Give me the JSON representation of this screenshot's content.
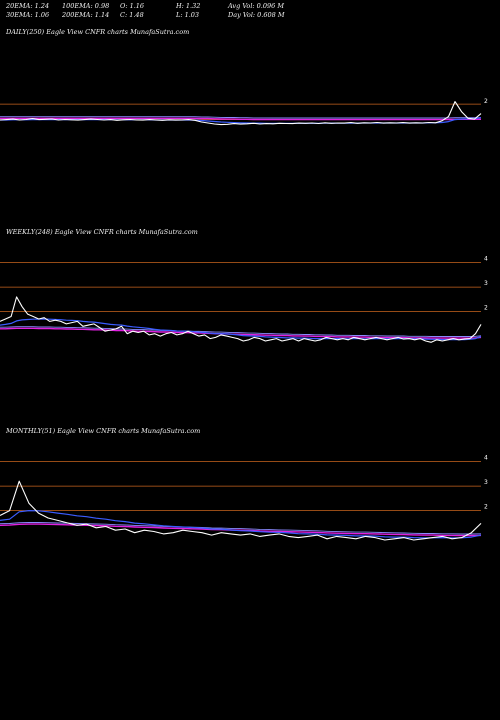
{
  "header": {
    "row1": [
      "20EMA: 1.24",
      "100EMA: 0.98",
      "O: 1.16",
      "H: 1.32",
      "Avg Vol: 0.096  M"
    ],
    "row2": [
      "30EMA: 1.06",
      "200EMA: 1.14",
      "C: 1.48",
      "L: 1.03",
      "Day Vol: 0.608 M"
    ]
  },
  "colors": {
    "background": "#000000",
    "price": "#ffffff",
    "ema_short": "#3a5cff",
    "ema_long": "#e020e0",
    "ema_mid": "#8a8aff",
    "level_line": "#c8641e"
  },
  "chart_data": [
    {
      "type": "line",
      "title": "DAILY(250) Eagle   View  CNFR charts MunafaSutra.com",
      "y_ticks": [
        {
          "label": "2",
          "value": 2
        }
      ],
      "level_lines": [
        2.05,
        1.12
      ],
      "ylim": [
        -5,
        6
      ],
      "series": [
        {
          "role": "price",
          "values": [
            1.1,
            1.12,
            1.15,
            1.1,
            1.13,
            1.18,
            1.12,
            1.14,
            1.16,
            1.1,
            1.13,
            1.11,
            1.09,
            1.12,
            1.15,
            1.13,
            1.1,
            1.12,
            1.08,
            1.11,
            1.13,
            1.1,
            1.09,
            1.12,
            1.1,
            1.08,
            1.11,
            1.09,
            1.1,
            1.12,
            1.08,
            0.98,
            0.92,
            0.86,
            0.82,
            0.84,
            0.88,
            0.85,
            0.87,
            0.9,
            0.86,
            0.88,
            0.87,
            0.9,
            0.89,
            0.88,
            0.91,
            0.9,
            0.92,
            0.89,
            0.93,
            0.9,
            0.92,
            0.91,
            0.94,
            0.9,
            0.93,
            0.92,
            0.95,
            0.91,
            0.93,
            0.92,
            0.94,
            0.91,
            0.93,
            0.92,
            0.95,
            0.93,
            1.05,
            1.3,
            2.2,
            1.6,
            1.2,
            1.15,
            1.48
          ]
        },
        {
          "role": "ema_long",
          "values": [
            1.2,
            1.2,
            1.2,
            1.2,
            1.2,
            1.2,
            1.2,
            1.2,
            1.2,
            1.2,
            1.2,
            1.2,
            1.2,
            1.2,
            1.2,
            1.2,
            1.2,
            1.2,
            1.2,
            1.2,
            1.2,
            1.2,
            1.2,
            1.2,
            1.2,
            1.2,
            1.2,
            1.2,
            1.2,
            1.2,
            1.2,
            1.19,
            1.18,
            1.17,
            1.16,
            1.15,
            1.15,
            1.14,
            1.14,
            1.13,
            1.13,
            1.13,
            1.12,
            1.12,
            1.12,
            1.12,
            1.12,
            1.12,
            1.12,
            1.12,
            1.12,
            1.12,
            1.12,
            1.12,
            1.12,
            1.12,
            1.12,
            1.12,
            1.12,
            1.12,
            1.12,
            1.12,
            1.12,
            1.12,
            1.12,
            1.12,
            1.12,
            1.12,
            1.12,
            1.13,
            1.14,
            1.14,
            1.14,
            1.14,
            1.14
          ]
        },
        {
          "role": "ema_short",
          "values": [
            1.1,
            1.1,
            1.11,
            1.11,
            1.11,
            1.12,
            1.12,
            1.12,
            1.12,
            1.12,
            1.12,
            1.12,
            1.12,
            1.12,
            1.12,
            1.12,
            1.12,
            1.12,
            1.11,
            1.11,
            1.11,
            1.11,
            1.11,
            1.11,
            1.1,
            1.1,
            1.1,
            1.1,
            1.1,
            1.1,
            1.09,
            1.07,
            1.04,
            1.01,
            0.98,
            0.96,
            0.94,
            0.93,
            0.92,
            0.91,
            0.91,
            0.9,
            0.9,
            0.9,
            0.9,
            0.9,
            0.9,
            0.9,
            0.9,
            0.9,
            0.91,
            0.91,
            0.91,
            0.91,
            0.91,
            0.91,
            0.92,
            0.92,
            0.92,
            0.92,
            0.92,
            0.92,
            0.92,
            0.92,
            0.92,
            0.92,
            0.93,
            0.93,
            0.95,
            1.0,
            1.12,
            1.16,
            1.17,
            1.18,
            1.24
          ]
        }
      ]
    },
    {
      "type": "line",
      "title": "WEEKLY(248) Eagle   View  CNFR charts MunafaSutra.com",
      "y_ticks": [
        {
          "label": "4",
          "value": 4
        },
        {
          "label": "3",
          "value": 3
        },
        {
          "label": "2",
          "value": 2
        }
      ],
      "level_lines": [
        4,
        3,
        2
      ],
      "ylim": [
        -2.5,
        5
      ],
      "series": [
        {
          "role": "price",
          "values": [
            1.6,
            1.7,
            1.8,
            2.6,
            2.2,
            1.9,
            1.8,
            1.7,
            1.75,
            1.6,
            1.65,
            1.6,
            1.5,
            1.55,
            1.6,
            1.4,
            1.45,
            1.5,
            1.35,
            1.2,
            1.25,
            1.3,
            1.4,
            1.1,
            1.2,
            1.15,
            1.2,
            1.05,
            1.1,
            1.0,
            1.1,
            1.15,
            1.05,
            1.1,
            1.2,
            1.1,
            1.0,
            1.05,
            0.9,
            0.95,
            1.05,
            1.0,
            0.95,
            0.9,
            0.8,
            0.85,
            0.95,
            0.9,
            0.8,
            0.85,
            0.9,
            0.8,
            0.85,
            0.9,
            0.8,
            0.9,
            0.85,
            0.8,
            0.85,
            0.95,
            0.9,
            0.85,
            0.9,
            0.85,
            0.95,
            0.9,
            0.85,
            0.9,
            0.95,
            0.9,
            0.85,
            0.9,
            0.95,
            0.88,
            0.9,
            0.85,
            0.9,
            0.8,
            0.75,
            0.85,
            0.8,
            0.85,
            0.9,
            0.85,
            0.88,
            0.9,
            1.1,
            1.48
          ]
        },
        {
          "role": "ema_long",
          "values": [
            1.3,
            1.3,
            1.31,
            1.32,
            1.32,
            1.32,
            1.32,
            1.31,
            1.31,
            1.31,
            1.3,
            1.3,
            1.29,
            1.29,
            1.28,
            1.28,
            1.27,
            1.26,
            1.26,
            1.25,
            1.24,
            1.23,
            1.23,
            1.22,
            1.21,
            1.2,
            1.2,
            1.19,
            1.18,
            1.17,
            1.17,
            1.16,
            1.15,
            1.15,
            1.14,
            1.13,
            1.13,
            1.12,
            1.11,
            1.1,
            1.1,
            1.09,
            1.08,
            1.08,
            1.07,
            1.06,
            1.06,
            1.05,
            1.04,
            1.04,
            1.03,
            1.02,
            1.02,
            1.01,
            1.01,
            1.0,
            1.0,
            0.99,
            0.99,
            0.98,
            0.98,
            0.97,
            0.97,
            0.97,
            0.96,
            0.96,
            0.96,
            0.95,
            0.95,
            0.95,
            0.94,
            0.94,
            0.94,
            0.94,
            0.93,
            0.93,
            0.93,
            0.93,
            0.92,
            0.92,
            0.92,
            0.92,
            0.92,
            0.92,
            0.92,
            0.92,
            0.93,
            0.95
          ]
        },
        {
          "role": "ema_short",
          "values": [
            1.45,
            1.48,
            1.52,
            1.62,
            1.66,
            1.68,
            1.69,
            1.69,
            1.7,
            1.69,
            1.68,
            1.67,
            1.65,
            1.64,
            1.63,
            1.6,
            1.58,
            1.57,
            1.54,
            1.51,
            1.48,
            1.46,
            1.45,
            1.41,
            1.38,
            1.36,
            1.34,
            1.31,
            1.28,
            1.25,
            1.24,
            1.23,
            1.21,
            1.2,
            1.2,
            1.18,
            1.16,
            1.15,
            1.12,
            1.1,
            1.1,
            1.09,
            1.07,
            1.05,
            1.02,
            1.01,
            1.0,
            0.99,
            0.97,
            0.96,
            0.95,
            0.94,
            0.93,
            0.93,
            0.92,
            0.92,
            0.91,
            0.9,
            0.9,
            0.9,
            0.9,
            0.9,
            0.9,
            0.89,
            0.9,
            0.9,
            0.89,
            0.89,
            0.9,
            0.9,
            0.89,
            0.89,
            0.9,
            0.9,
            0.9,
            0.89,
            0.89,
            0.88,
            0.87,
            0.87,
            0.86,
            0.86,
            0.86,
            0.86,
            0.86,
            0.87,
            0.9,
            0.98
          ]
        }
      ]
    },
    {
      "type": "line",
      "title": "MONTHLY(51) Eagle   View  CNFR charts MunafaSutra.com",
      "y_ticks": [
        {
          "label": "4",
          "value": 4
        },
        {
          "label": "3",
          "value": 3
        },
        {
          "label": "2",
          "value": 2
        }
      ],
      "level_lines": [
        4,
        3,
        2
      ],
      "ylim": [
        -2.5,
        5
      ],
      "series": [
        {
          "role": "price",
          "values": [
            1.8,
            2.0,
            3.2,
            2.3,
            1.9,
            1.7,
            1.6,
            1.5,
            1.4,
            1.45,
            1.3,
            1.35,
            1.2,
            1.25,
            1.1,
            1.2,
            1.15,
            1.05,
            1.1,
            1.2,
            1.15,
            1.1,
            1.0,
            1.1,
            1.05,
            1.0,
            1.05,
            0.95,
            1.0,
            1.05,
            0.95,
            0.9,
            0.95,
            1.0,
            0.85,
            0.95,
            0.9,
            0.85,
            0.95,
            0.9,
            0.8,
            0.85,
            0.9,
            0.8,
            0.85,
            0.9,
            0.95,
            0.85,
            0.9,
            1.1,
            1.48
          ]
        },
        {
          "role": "ema_long",
          "values": [
            1.4,
            1.41,
            1.44,
            1.45,
            1.45,
            1.44,
            1.43,
            1.42,
            1.41,
            1.4,
            1.39,
            1.38,
            1.36,
            1.35,
            1.33,
            1.32,
            1.31,
            1.29,
            1.28,
            1.27,
            1.26,
            1.25,
            1.23,
            1.22,
            1.21,
            1.2,
            1.19,
            1.17,
            1.16,
            1.15,
            1.14,
            1.13,
            1.12,
            1.11,
            1.09,
            1.08,
            1.07,
            1.06,
            1.06,
            1.05,
            1.04,
            1.03,
            1.02,
            1.01,
            1.0,
            1.0,
            0.99,
            0.99,
            0.98,
            0.98,
            0.99
          ]
        },
        {
          "role": "ema_short",
          "values": [
            1.6,
            1.65,
            1.95,
            2.0,
            1.99,
            1.95,
            1.9,
            1.85,
            1.79,
            1.75,
            1.69,
            1.65,
            1.59,
            1.55,
            1.49,
            1.46,
            1.42,
            1.38,
            1.35,
            1.33,
            1.31,
            1.29,
            1.25,
            1.24,
            1.21,
            1.18,
            1.17,
            1.14,
            1.12,
            1.11,
            1.09,
            1.06,
            1.05,
            1.04,
            1.01,
            1.0,
            0.99,
            0.97,
            0.97,
            0.96,
            0.93,
            0.92,
            0.92,
            0.9,
            0.89,
            0.89,
            0.9,
            0.89,
            0.89,
            0.92,
            1.0
          ]
        }
      ]
    }
  ]
}
